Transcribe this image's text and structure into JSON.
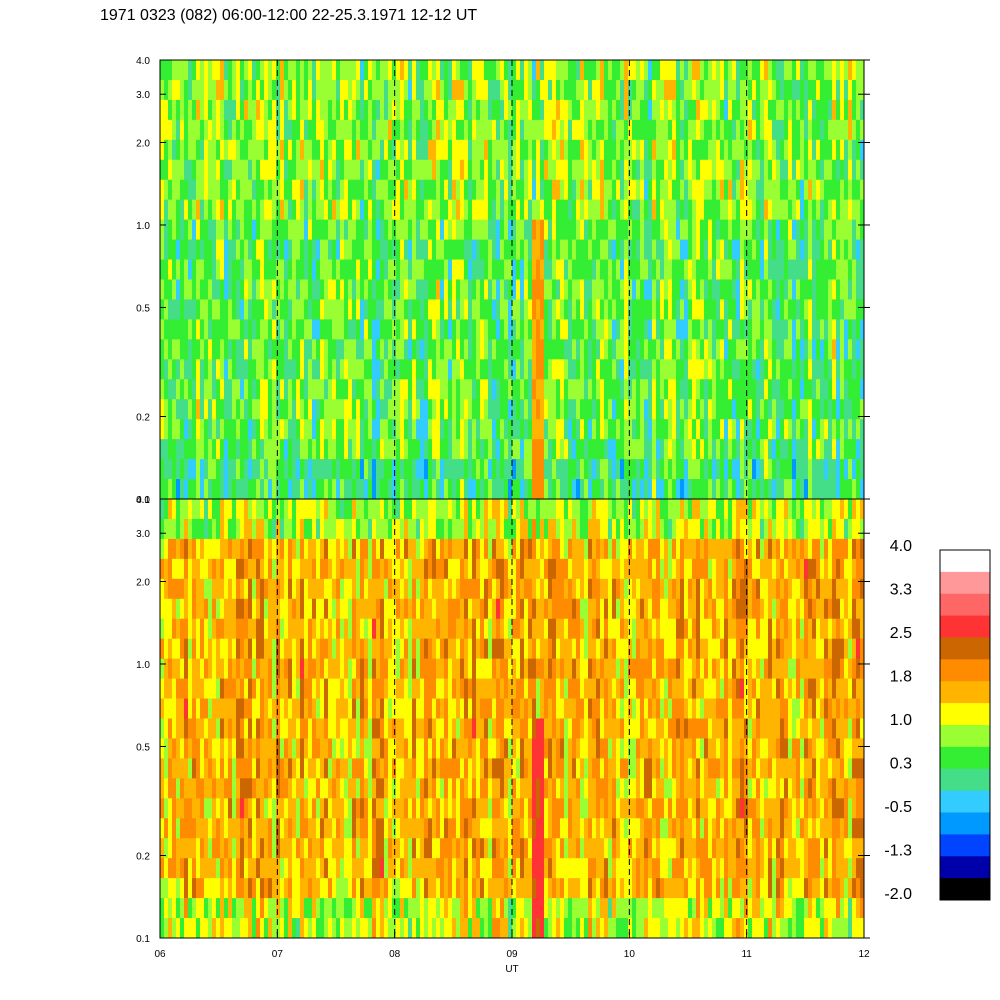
{
  "chart_data": {
    "type": "heatmap",
    "title": "1971 0323 (082) 06:00-12:00 22-25.3.1971  12-12 UT",
    "xlabel": "UT",
    "x_range": [
      6,
      12
    ],
    "x_ticks": [
      "06",
      "07",
      "08",
      "09",
      "10",
      "11",
      "12"
    ],
    "x_gridlines": [
      7,
      8,
      9,
      10,
      11
    ],
    "grid": "dashed vertical lines at each hour",
    "y_scale": "log",
    "panels": [
      {
        "name": "upper",
        "ylim": [
          0.1,
          4.0
        ],
        "y_ticks": [
          "0.1",
          "0.2",
          "0.5",
          "1.0",
          "2.0",
          "3.0",
          "4.0"
        ],
        "description_level": "mostly green/cyan with yellow-green streaks",
        "base_level": 0.5,
        "features": [
          {
            "x_start": 9.18,
            "x_end": 9.27,
            "y_top": 1.1,
            "level": 1.8
          }
        ]
      },
      {
        "name": "lower",
        "ylim": [
          0.1,
          4.0
        ],
        "y_ticks": [
          "0.1",
          "0.2",
          "0.5",
          "1.0",
          "2.0",
          "3.0",
          "4.0"
        ],
        "base_level": 1.6,
        "features": [
          {
            "x_start": 9.18,
            "x_end": 9.27,
            "y_top": 0.6,
            "level": 2.6
          }
        ]
      }
    ],
    "colorbar": {
      "labels": [
        "4.0",
        "3.3",
        "2.5",
        "1.8",
        "1.0",
        "0.3",
        "-0.5",
        "-1.3",
        "-2.0"
      ],
      "colors": [
        "#ffffff",
        "#ff9999",
        "#ff6666",
        "#ff3333",
        "#cc6600",
        "#ff8c00",
        "#ffb400",
        "#ffff00",
        "#99ff33",
        "#33ee33",
        "#44dd88",
        "#33ccff",
        "#0099ff",
        "#0044ff",
        "#0000aa",
        "#000000"
      ]
    }
  }
}
